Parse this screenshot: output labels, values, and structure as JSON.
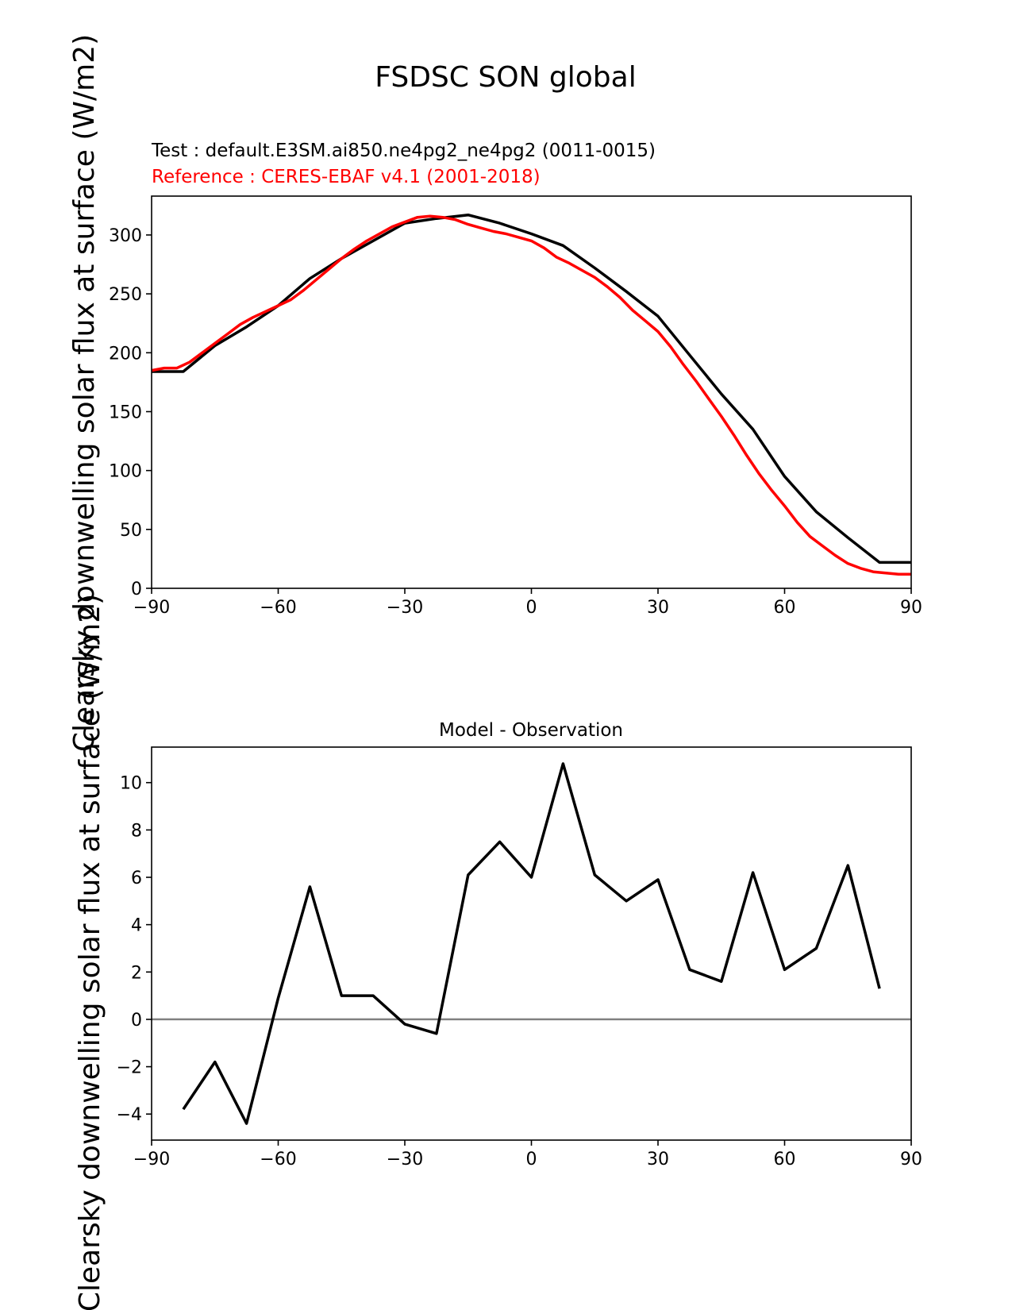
{
  "figure": {
    "suptitle": "FSDSC SON global"
  },
  "chart_data": [
    {
      "type": "line",
      "test_label": "Test : default.E3SM.ai850.ne4pg2_ne4pg2 (0011-0015)",
      "reference_label": "Reference : CERES-EBAF v4.1 (2001-2018)",
      "ylabel": "Clearsky downwelling solar flux at surface (W/m2)",
      "xlim": [
        -90,
        90
      ],
      "ylim": [
        0,
        333
      ],
      "xticks": [
        -90,
        -60,
        -30,
        0,
        30,
        60,
        90
      ],
      "yticks": [
        0,
        50,
        100,
        150,
        200,
        250,
        300
      ],
      "colors": {
        "test": "#000000",
        "reference": "#ff0000"
      },
      "series": [
        {
          "name": "test",
          "x": [
            -90,
            -82.5,
            -75,
            -67.5,
            -60,
            -52.5,
            -45,
            -37.5,
            -30,
            -22.5,
            -15,
            -7.5,
            0,
            7.5,
            15,
            22.5,
            30,
            37.5,
            45,
            52.5,
            60,
            67.5,
            75,
            82.5,
            90
          ],
          "y": [
            184,
            184,
            206,
            222,
            240,
            263,
            280,
            295,
            310,
            314,
            317,
            310,
            301,
            291,
            272,
            252,
            231,
            198,
            165,
            135,
            95,
            65,
            43,
            22,
            22
          ]
        },
        {
          "name": "reference",
          "x": [
            -90,
            -87,
            -84,
            -81,
            -78,
            -75,
            -72,
            -69,
            -66,
            -63,
            -60,
            -57,
            -54,
            -51,
            -48,
            -45,
            -42,
            -39,
            -36,
            -33,
            -30,
            -27,
            -24,
            -21,
            -18,
            -15,
            -12,
            -9,
            -6,
            -3,
            0,
            3,
            6,
            9,
            12,
            15,
            18,
            21,
            24,
            27,
            30,
            33,
            36,
            39,
            42,
            45,
            48,
            51,
            54,
            57,
            60,
            63,
            66,
            69,
            72,
            75,
            78,
            81,
            84,
            87,
            90
          ],
          "y": [
            185,
            187,
            187,
            192,
            200,
            208,
            216,
            224,
            230,
            235,
            240,
            245,
            253,
            262,
            271,
            280,
            288,
            295,
            301,
            307,
            311,
            315,
            316,
            315,
            313,
            309,
            306,
            303,
            301,
            298,
            295,
            289,
            281,
            276,
            270,
            264,
            256,
            247,
            236,
            227,
            218,
            205,
            190,
            176,
            161,
            146,
            130,
            113,
            97,
            83,
            70,
            56,
            44,
            36,
            28,
            21,
            17,
            14,
            13,
            12,
            12
          ]
        }
      ]
    },
    {
      "type": "line",
      "title": "Model - Observation",
      "ylabel": "Clearsky downwelling solar flux at surface (W/m2)",
      "xlim": [
        -90,
        90
      ],
      "ylim": [
        -5.1,
        11.5
      ],
      "xticks": [
        -90,
        -60,
        -30,
        0,
        30,
        60,
        90
      ],
      "yticks": [
        -4,
        -2,
        0,
        2,
        4,
        6,
        8,
        10
      ],
      "zero_line_color": "#808080",
      "series": [
        {
          "name": "difference",
          "x": [
            -82.5,
            -75,
            -67.5,
            -60,
            -52.5,
            -45,
            -37.5,
            -30,
            -22.5,
            -15,
            -7.5,
            0,
            7.5,
            15,
            22.5,
            30,
            37.5,
            45,
            52.5,
            60,
            67.5,
            75,
            82.5
          ],
          "y": [
            -3.8,
            -1.8,
            -4.4,
            0.9,
            5.6,
            1.0,
            1.0,
            -0.2,
            -0.6,
            6.1,
            7.5,
            6.0,
            10.8,
            6.1,
            5.0,
            5.9,
            2.1,
            1.6,
            6.2,
            2.1,
            3.0,
            6.5,
            1.3
          ]
        }
      ]
    }
  ]
}
